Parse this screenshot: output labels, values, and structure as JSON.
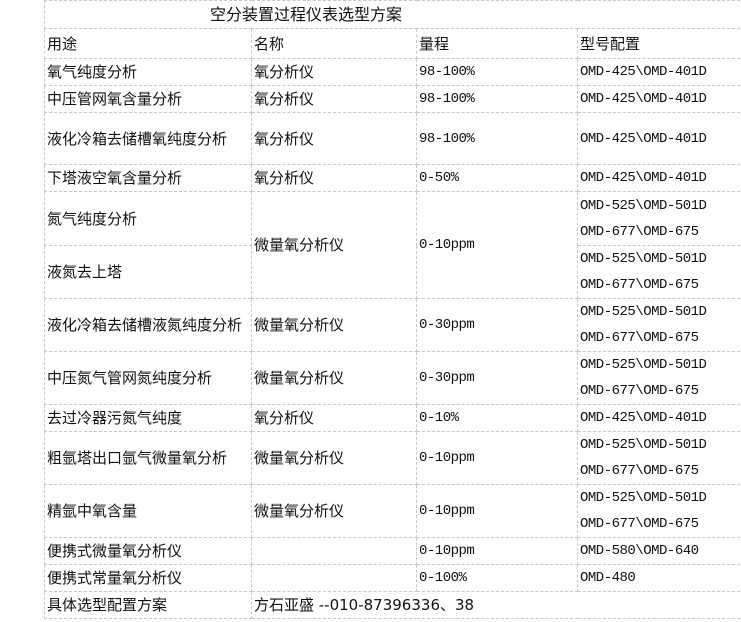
{
  "title": "空分装置过程仪表选型方案",
  "headers": [
    "用途",
    "名称",
    "量程",
    "型号配置"
  ],
  "rows": [
    {
      "use": "氧气纯度分析",
      "name": "氧分析仪",
      "range": "98-100%",
      "models": [
        "OMD-425\\OMD-401D"
      ]
    },
    {
      "use": "中压管网氧含量分析",
      "name": "氧分析仪",
      "range": "98-100%",
      "models": [
        "OMD-425\\OMD-401D"
      ]
    },
    {
      "use": "液化冷箱去储槽氧纯度分析",
      "name": "氧分析仪",
      "range": "98-100%",
      "models": [
        "OMD-425\\OMD-401D"
      ]
    },
    {
      "use": "下塔液空氧含量分析",
      "name": "氧分析仪",
      "range": "0-50%",
      "models": [
        "OMD-425\\OMD-401D"
      ]
    },
    {
      "use": "氮气纯度分析",
      "name": "微量氧分析仪",
      "range": "0-10ppm",
      "models": [
        "OMD-525\\OMD-501D",
        "OMD-677\\OMD-675"
      ]
    },
    {
      "use": "液氮去上塔",
      "models": [
        "OMD-525\\OMD-501D",
        "OMD-677\\OMD-675"
      ]
    },
    {
      "use": "液化冷箱去储槽液氮纯度分析",
      "name": "微量氧分析仪",
      "range": "0-30ppm",
      "models": [
        "OMD-525\\OMD-501D",
        "OMD-677\\OMD-675"
      ]
    },
    {
      "use": "中压氮气管网氮纯度分析",
      "name": "微量氧分析仪",
      "range": "0-30ppm",
      "models": [
        "OMD-525\\OMD-501D",
        "OMD-677\\OMD-675"
      ]
    },
    {
      "use": "去过冷器污氮气纯度",
      "name": "氧分析仪",
      "range": "0-10%",
      "models": [
        "OMD-425\\OMD-401D"
      ]
    },
    {
      "use": "粗氩塔出口氩气微量氧分析",
      "name": "微量氧分析仪",
      "range": "0-10ppm",
      "models": [
        "OMD-525\\OMD-501D",
        "OMD-677\\OMD-675"
      ]
    },
    {
      "use": "精氩中氧含量",
      "name": "微量氧分析仪",
      "range": "0-10ppm",
      "models": [
        "OMD-525\\OMD-501D",
        "OMD-677\\OMD-675"
      ]
    },
    {
      "use": "便携式微量氧分析仪",
      "name": "",
      "range": "0-10ppm",
      "models": [
        "OMD-580\\OMD-640"
      ]
    },
    {
      "use": "便携式常量氧分析仪",
      "name": "",
      "range": "0-100%",
      "models": [
        "OMD-480"
      ]
    }
  ],
  "footer": {
    "label": "具体选型配置方案",
    "contact": "方石亚盛 --010-87396336、38"
  }
}
